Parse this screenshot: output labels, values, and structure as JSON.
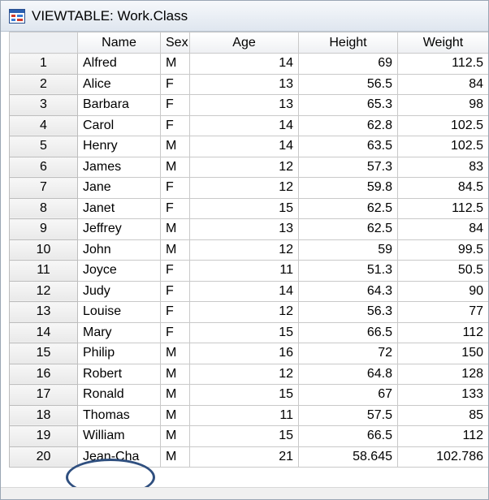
{
  "window": {
    "title": "VIEWTABLE: Work.Class",
    "icon": "sas-viewtable-icon"
  },
  "table": {
    "columns": [
      "Name",
      "Sex",
      "Age",
      "Height",
      "Weight"
    ],
    "rows": [
      {
        "n": "1",
        "name": "Alfred",
        "sex": "M",
        "age": "14",
        "height": "69",
        "weight": "112.5"
      },
      {
        "n": "2",
        "name": "Alice",
        "sex": "F",
        "age": "13",
        "height": "56.5",
        "weight": "84"
      },
      {
        "n": "3",
        "name": "Barbara",
        "sex": "F",
        "age": "13",
        "height": "65.3",
        "weight": "98"
      },
      {
        "n": "4",
        "name": "Carol",
        "sex": "F",
        "age": "14",
        "height": "62.8",
        "weight": "102.5"
      },
      {
        "n": "5",
        "name": "Henry",
        "sex": "M",
        "age": "14",
        "height": "63.5",
        "weight": "102.5"
      },
      {
        "n": "6",
        "name": "James",
        "sex": "M",
        "age": "12",
        "height": "57.3",
        "weight": "83"
      },
      {
        "n": "7",
        "name": "Jane",
        "sex": "F",
        "age": "12",
        "height": "59.8",
        "weight": "84.5"
      },
      {
        "n": "8",
        "name": "Janet",
        "sex": "F",
        "age": "15",
        "height": "62.5",
        "weight": "112.5"
      },
      {
        "n": "9",
        "name": "Jeffrey",
        "sex": "M",
        "age": "13",
        "height": "62.5",
        "weight": "84"
      },
      {
        "n": "10",
        "name": "John",
        "sex": "M",
        "age": "12",
        "height": "59",
        "weight": "99.5"
      },
      {
        "n": "11",
        "name": "Joyce",
        "sex": "F",
        "age": "11",
        "height": "51.3",
        "weight": "50.5"
      },
      {
        "n": "12",
        "name": "Judy",
        "sex": "F",
        "age": "14",
        "height": "64.3",
        "weight": "90"
      },
      {
        "n": "13",
        "name": "Louise",
        "sex": "F",
        "age": "12",
        "height": "56.3",
        "weight": "77"
      },
      {
        "n": "14",
        "name": "Mary",
        "sex": "F",
        "age": "15",
        "height": "66.5",
        "weight": "112"
      },
      {
        "n": "15",
        "name": "Philip",
        "sex": "M",
        "age": "16",
        "height": "72",
        "weight": "150"
      },
      {
        "n": "16",
        "name": "Robert",
        "sex": "M",
        "age": "12",
        "height": "64.8",
        "weight": "128"
      },
      {
        "n": "17",
        "name": "Ronald",
        "sex": "M",
        "age": "15",
        "height": "67",
        "weight": "133"
      },
      {
        "n": "18",
        "name": "Thomas",
        "sex": "M",
        "age": "11",
        "height": "57.5",
        "weight": "85"
      },
      {
        "n": "19",
        "name": "William",
        "sex": "M",
        "age": "15",
        "height": "66.5",
        "weight": "112"
      },
      {
        "n": "20",
        "name": "Jean-Cha",
        "sex": "M",
        "age": "21",
        "height": "58.645",
        "weight": "102.786"
      }
    ]
  },
  "colors": {
    "annotation": "#2f4f7f",
    "grid_line": "#c9c9c9"
  }
}
